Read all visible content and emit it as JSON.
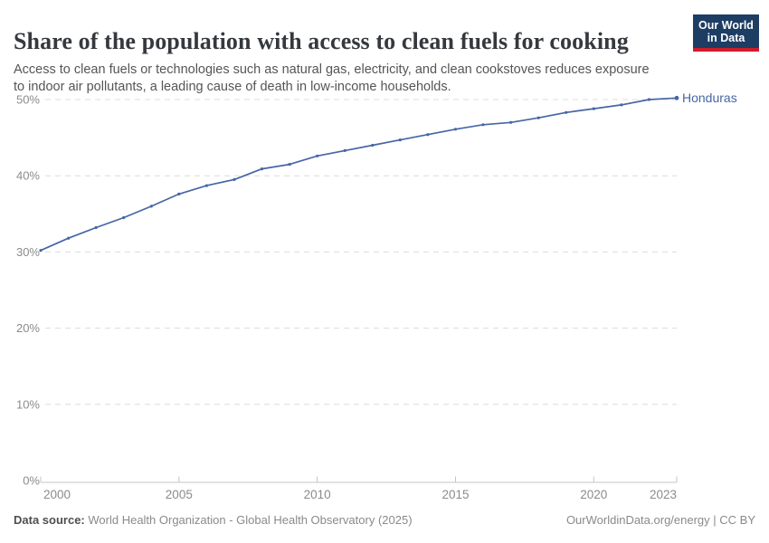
{
  "header": {
    "title": "Share of the population with access to clean fuels for cooking",
    "subtitle_line1": "Access to clean fuels or technologies such as natural gas, electricity, and clean cookstoves reduces exposure",
    "subtitle_line2": "to indoor air pollutants, a leading cause of death in low-income households.",
    "logo_line1": "Our World",
    "logo_line2": "in Data"
  },
  "footer": {
    "source_label": "Data source:",
    "source_text": "World Health Organization - Global Health Observatory (2025)",
    "link_text": "OurWorldinData.org/energy | CC BY"
  },
  "colors": {
    "series_blue": "#4666a5",
    "gridline": "#dcdcdc",
    "axis_line": "#c4c4c4",
    "tick_label": "#8b8b8b",
    "logo_navy": "#1d3d63",
    "logo_red": "#cf1c2c"
  },
  "chart_data": {
    "type": "line",
    "title": "Share of the population with access to clean fuels for cooking",
    "entity_label": "Honduras",
    "x": [
      2000,
      2001,
      2002,
      2003,
      2004,
      2005,
      2006,
      2007,
      2008,
      2009,
      2010,
      2011,
      2012,
      2013,
      2014,
      2015,
      2016,
      2017,
      2018,
      2019,
      2020,
      2021,
      2022,
      2023
    ],
    "series": [
      {
        "name": "Honduras",
        "values": [
          30.2,
          31.8,
          33.2,
          34.5,
          36.0,
          37.6,
          38.7,
          39.5,
          40.9,
          41.5,
          42.6,
          43.3,
          44.0,
          44.7,
          45.4,
          46.1,
          46.7,
          47.0,
          47.6,
          48.3,
          48.8,
          49.3,
          50.0,
          50.2
        ]
      }
    ],
    "xlim": [
      2000,
      2023
    ],
    "ylim": [
      0,
      50
    ],
    "xticks": [
      2000,
      2005,
      2010,
      2015,
      2020,
      2023
    ],
    "yticks": [
      0,
      10,
      20,
      30,
      40,
      50
    ],
    "ytick_suffix": "%",
    "grid": "horizontal-dashed",
    "legend_position": "end-of-line"
  }
}
